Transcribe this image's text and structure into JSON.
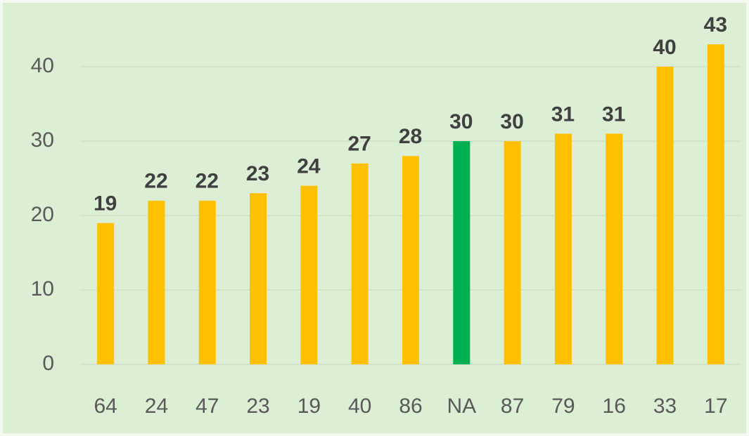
{
  "chart_data": {
    "type": "bar",
    "categories": [
      "64",
      "24",
      "47",
      "23",
      "19",
      "40",
      "86",
      "NA",
      "87",
      "79",
      "16",
      "33",
      "17"
    ],
    "values": [
      19,
      22,
      22,
      23,
      24,
      27,
      28,
      30,
      30,
      31,
      31,
      40,
      43
    ],
    "colors": [
      "#ffc000",
      "#ffc000",
      "#ffc000",
      "#ffc000",
      "#ffc000",
      "#ffc000",
      "#ffc000",
      "#00b050",
      "#ffc000",
      "#ffc000",
      "#ffc000",
      "#ffc000",
      "#ffc000"
    ],
    "ylim": [
      0,
      45
    ],
    "yticks": [
      0,
      10,
      20,
      30,
      40
    ],
    "grid": true
  }
}
